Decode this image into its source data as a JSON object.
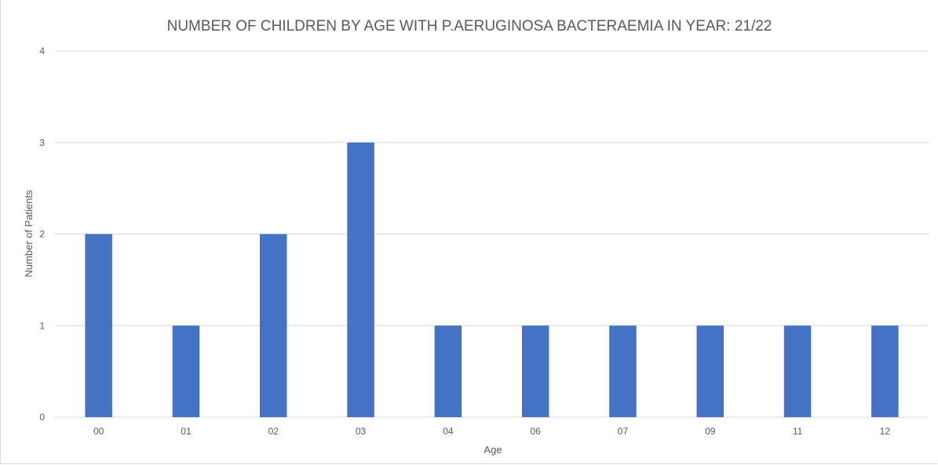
{
  "chart_data": {
    "type": "bar",
    "title": "NUMBER OF CHILDREN BY AGE WITH P.AERUGINOSA BACTERAEMIA IN YEAR: 21/22",
    "xlabel": "Age",
    "ylabel": "Number of Patients",
    "categories": [
      "00",
      "01",
      "02",
      "03",
      "04",
      "06",
      "07",
      "09",
      "11",
      "12"
    ],
    "values": [
      2,
      1,
      2,
      3,
      1,
      1,
      1,
      1,
      1,
      1
    ],
    "ylim": [
      0,
      4
    ],
    "yticks": [
      "0",
      "1",
      "2",
      "3",
      "4"
    ],
    "grid": true,
    "legend": "none",
    "colors": {
      "bar": "#4472C4",
      "grid": "#d9d9d9",
      "text": "#595959"
    }
  }
}
